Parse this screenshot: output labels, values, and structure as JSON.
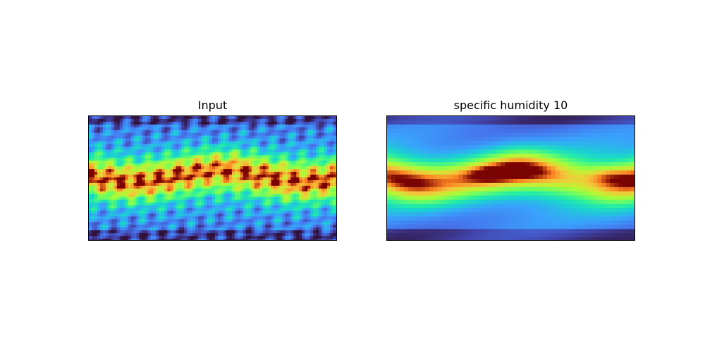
{
  "figure": {
    "panels": [
      {
        "title": "Input"
      },
      {
        "title": "specific humidity 10"
      }
    ]
  },
  "chart_data": [
    {
      "type": "heatmap",
      "title": "Input",
      "colormap": "turbo",
      "axes_ticks": false,
      "grid": false,
      "legend": "none",
      "field": "global latitude-longitude field, high values in tropical band, sharp filaments"
    },
    {
      "type": "heatmap",
      "title": "specific humidity 10",
      "colormap": "turbo",
      "axes_ticks": false,
      "grid": false,
      "legend": "none",
      "field": "global latitude-longitude field, high values in tropical band, smooth"
    }
  ]
}
